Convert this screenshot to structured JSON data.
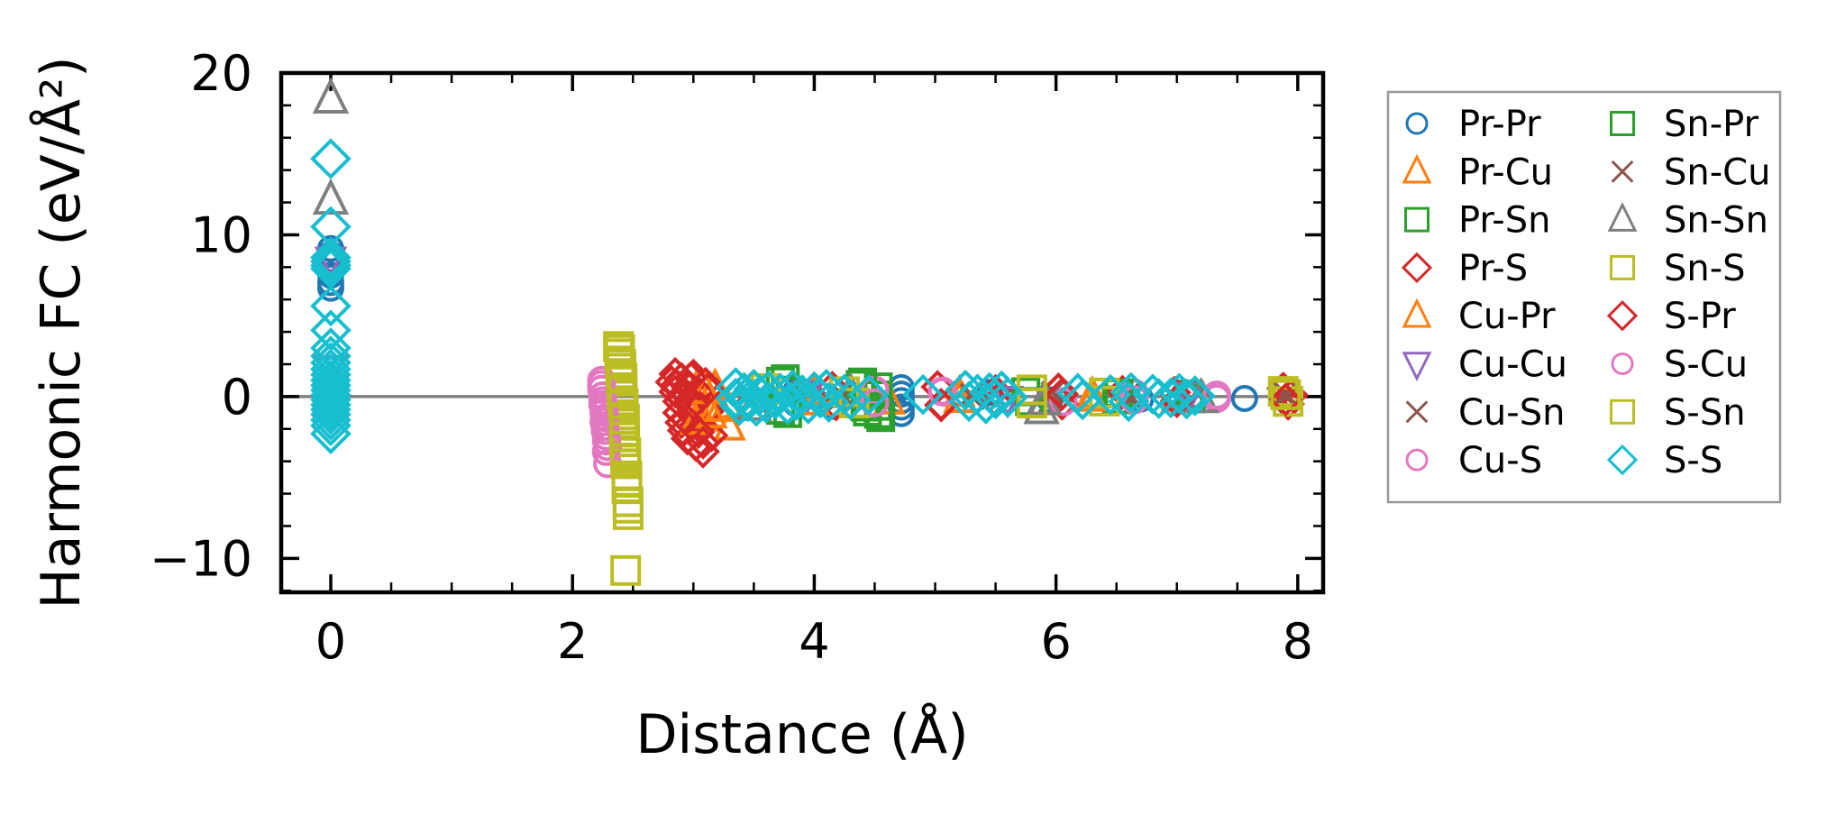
{
  "figure": {
    "background": "#ffffff",
    "axis_color": "#000000",
    "zero_line_color": "#808080",
    "legend_border_color": "#999999"
  },
  "chart_data": {
    "type": "scatter",
    "title": "",
    "xlabel": "Distance (Å)",
    "ylabel": "Harmonic FC (eV/Å²)",
    "xlim": [
      -0.41,
      8.21
    ],
    "ylim": [
      -12.1,
      20.0
    ],
    "xticks": [
      0,
      2,
      4,
      6,
      8
    ],
    "yticks": [
      20,
      10,
      0,
      -10
    ],
    "x_minor_step": 0.5,
    "y_minor_step": 2,
    "grid": false,
    "zero_line_y": 0,
    "legend_position": "outside-right",
    "legend_columns": 2,
    "series": [
      {
        "name": "Pr-Pr",
        "marker": "circle",
        "color": "#1f77b4",
        "size": 26,
        "points": [
          [
            0,
            9.15
          ],
          [
            0,
            8.8
          ],
          [
            0,
            8.45
          ],
          [
            0,
            7.5
          ],
          [
            0,
            7.05
          ],
          [
            0,
            6.7
          ],
          [
            3.85,
            0.35
          ],
          [
            3.85,
            -0.45
          ],
          [
            4.15,
            -0.6
          ],
          [
            4.72,
            0.55
          ],
          [
            4.72,
            0.15
          ],
          [
            4.72,
            -0.25
          ],
          [
            4.72,
            -0.65
          ],
          [
            4.72,
            -1.05
          ],
          [
            5.45,
            0.25
          ],
          [
            5.95,
            -0.2
          ],
          [
            6.7,
            -0.15
          ],
          [
            7.56,
            -0.12
          ]
        ]
      },
      {
        "name": "Pr-Cu",
        "marker": "triangle-up",
        "color": "#ff7f0e",
        "size": 30,
        "points": [
          [
            3.02,
            0.45
          ],
          [
            3.05,
            -0.95
          ],
          [
            3.08,
            -1.35
          ],
          [
            3.18,
            0.6
          ],
          [
            3.28,
            -0.55
          ],
          [
            3.3,
            -1.9
          ],
          [
            4.0,
            0.3
          ],
          [
            4.62,
            -0.3
          ],
          [
            5.2,
            -0.2
          ],
          [
            6.3,
            0.12
          ],
          [
            7.0,
            -0.1
          ]
        ]
      },
      {
        "name": "Pr-Sn",
        "marker": "square",
        "color": "#2ca02c",
        "size": 28,
        "points": [
          [
            3.72,
            0.95
          ],
          [
            3.72,
            -0.85
          ],
          [
            4.38,
            0.75
          ],
          [
            4.42,
            -0.65
          ],
          [
            4.53,
            0.6
          ],
          [
            4.53,
            0.1
          ],
          [
            4.53,
            -0.6
          ],
          [
            4.53,
            -1.1
          ],
          [
            5.75,
            0.3
          ],
          [
            6.5,
            -0.2
          ],
          [
            7.1,
            0.15
          ]
        ]
      },
      {
        "name": "Pr-S",
        "marker": "diamond",
        "color": "#d62728",
        "size": 32,
        "points": [
          [
            2.82,
            0.9
          ],
          [
            2.85,
            1.4
          ],
          [
            2.85,
            0.3
          ],
          [
            2.88,
            -0.3
          ],
          [
            2.88,
            -1.0
          ],
          [
            2.9,
            1.1
          ],
          [
            2.9,
            -1.6
          ],
          [
            2.92,
            -2.1
          ],
          [
            2.95,
            0.6
          ],
          [
            2.95,
            -2.6
          ],
          [
            2.98,
            -0.6
          ],
          [
            3.0,
            1.3
          ],
          [
            3.0,
            -1.2
          ],
          [
            3.02,
            -3.0
          ],
          [
            3.05,
            0.2
          ],
          [
            3.05,
            -1.9
          ],
          [
            3.08,
            -3.4
          ],
          [
            3.1,
            0.8
          ],
          [
            3.12,
            -0.9
          ],
          [
            3.15,
            -2.4
          ],
          [
            4.15,
            0.55
          ],
          [
            4.18,
            -0.5
          ],
          [
            5.02,
            0.6
          ],
          [
            5.05,
            -0.55
          ],
          [
            5.5,
            0.35
          ],
          [
            6.02,
            0.45
          ],
          [
            6.05,
            -0.45
          ],
          [
            6.55,
            0.3
          ],
          [
            6.98,
            0.25
          ],
          [
            7.0,
            -0.25
          ],
          [
            7.88,
            0.5
          ],
          [
            7.92,
            -0.45
          ],
          [
            7.95,
            0.1
          ]
        ]
      },
      {
        "name": "Cu-Pr",
        "marker": "triangle-up",
        "color": "#ff7f0e",
        "size": 30,
        "points": [
          [
            3.02,
            -1.55
          ],
          [
            3.1,
            0.35
          ],
          [
            3.15,
            -1.15
          ],
          [
            3.22,
            -0.75
          ],
          [
            4.0,
            -0.35
          ],
          [
            5.2,
            0.18
          ],
          [
            6.3,
            -0.12
          ]
        ]
      },
      {
        "name": "Cu-Cu",
        "marker": "triangle-down",
        "color": "#9467bd",
        "size": 30,
        "points": [
          [
            0,
            8.45
          ],
          [
            0,
            1.75
          ],
          [
            0,
            0.4
          ],
          [
            0,
            -0.45
          ],
          [
            3.95,
            0.2
          ],
          [
            5.6,
            -0.15
          ],
          [
            7.1,
            0.08
          ]
        ]
      },
      {
        "name": "Cu-Sn",
        "marker": "x",
        "color": "#8c564b",
        "size": 28,
        "points": [
          [
            3.45,
            0.3
          ],
          [
            4.2,
            -0.2
          ],
          [
            5.3,
            0.12
          ],
          [
            5.95,
            -0.3
          ],
          [
            6.6,
            0.15
          ],
          [
            7.9,
            0.02
          ]
        ]
      },
      {
        "name": "Cu-S",
        "marker": "circle",
        "color": "#e377c2",
        "size": 28,
        "points": [
          [
            2.24,
            1.0
          ],
          [
            2.24,
            0.45
          ],
          [
            2.25,
            0.05
          ],
          [
            2.25,
            -0.5
          ],
          [
            2.26,
            -1.0
          ],
          [
            2.26,
            -1.55
          ],
          [
            2.27,
            -2.1
          ],
          [
            2.28,
            -2.75
          ],
          [
            2.28,
            -3.4
          ],
          [
            2.29,
            -4.15
          ],
          [
            4.5,
            0.4
          ],
          [
            5.06,
            0.35
          ],
          [
            6.06,
            -0.32
          ],
          [
            6.65,
            0.2
          ],
          [
            7.33,
            -0.12
          ]
        ]
      },
      {
        "name": "Sn-Pr",
        "marker": "square",
        "color": "#2ca02c",
        "size": 28,
        "points": [
          [
            3.76,
            1.1
          ],
          [
            3.78,
            -1.05
          ],
          [
            3.8,
            0.4
          ],
          [
            4.4,
            0.9
          ],
          [
            4.44,
            -0.95
          ],
          [
            4.55,
            -1.3
          ],
          [
            5.78,
            -0.3
          ],
          [
            6.52,
            0.22
          ],
          [
            7.12,
            -0.14
          ]
        ]
      },
      {
        "name": "Sn-Cu",
        "marker": "x",
        "color": "#8c564b",
        "size": 28,
        "points": [
          [
            3.47,
            -0.25
          ],
          [
            4.22,
            0.18
          ],
          [
            5.32,
            -0.1
          ],
          [
            5.97,
            0.25
          ],
          [
            6.62,
            -0.12
          ],
          [
            7.9,
            0.15
          ]
        ]
      },
      {
        "name": "Sn-Sn",
        "marker": "triangle-up",
        "color": "#7f7f7f",
        "size": 34,
        "points": [
          [
            0,
            18.4
          ],
          [
            0,
            12.15
          ],
          [
            3.5,
            -0.6
          ],
          [
            4.3,
            0.2
          ],
          [
            5.88,
            -0.8
          ],
          [
            5.9,
            -0.25
          ],
          [
            7.2,
            -0.12
          ]
        ]
      },
      {
        "name": "Sn-S",
        "marker": "square",
        "color": "#bcbd22",
        "size": 30,
        "points": [
          [
            2.38,
            3.1
          ],
          [
            2.39,
            2.65
          ],
          [
            2.39,
            2.2
          ],
          [
            2.4,
            1.75
          ],
          [
            2.4,
            1.35
          ],
          [
            2.4,
            0.95
          ],
          [
            2.41,
            0.55
          ],
          [
            2.41,
            0.15
          ],
          [
            2.41,
            -0.25
          ],
          [
            2.42,
            -0.7
          ],
          [
            2.42,
            -1.15
          ],
          [
            2.42,
            -1.65
          ],
          [
            2.43,
            -2.2
          ],
          [
            2.43,
            -2.8
          ],
          [
            2.44,
            -3.45
          ],
          [
            2.44,
            -4.15
          ],
          [
            2.45,
            -4.9
          ],
          [
            2.45,
            -5.7
          ],
          [
            2.46,
            -6.5
          ],
          [
            2.46,
            -7.3
          ],
          [
            2.44,
            -10.75
          ],
          [
            3.6,
            0.5
          ],
          [
            4.25,
            0.3
          ],
          [
            4.33,
            -0.4
          ],
          [
            5.8,
            0.42
          ],
          [
            6.4,
            -0.28
          ],
          [
            7.88,
            0.32
          ],
          [
            7.92,
            -0.3
          ]
        ]
      },
      {
        "name": "S-Pr",
        "marker": "diamond",
        "color": "#d62728",
        "size": 32,
        "points": [
          [
            2.86,
            0.7
          ],
          [
            2.9,
            0.0
          ],
          [
            2.94,
            -1.4
          ],
          [
            2.98,
            1.15
          ],
          [
            3.0,
            -0.45
          ],
          [
            3.04,
            -2.2
          ],
          [
            3.08,
            -2.85
          ],
          [
            3.12,
            0.45
          ],
          [
            5.05,
            -0.5
          ],
          [
            5.5,
            -0.3
          ],
          [
            6.05,
            0.15
          ],
          [
            7.0,
            -0.3
          ],
          [
            7.9,
            -0.18
          ]
        ]
      },
      {
        "name": "S-Cu",
        "marker": "circle",
        "color": "#e377c2",
        "size": 28,
        "points": [
          [
            2.24,
            0.75
          ],
          [
            2.25,
            -0.25
          ],
          [
            2.26,
            -0.75
          ],
          [
            2.27,
            -1.3
          ],
          [
            2.27,
            -1.85
          ],
          [
            2.28,
            -2.45
          ],
          [
            2.29,
            -3.1
          ],
          [
            4.5,
            -0.38
          ],
          [
            5.06,
            0.28
          ],
          [
            6.65,
            -0.2
          ],
          [
            7.33,
            0.1
          ]
        ]
      },
      {
        "name": "S-Sn",
        "marker": "square",
        "color": "#bcbd22",
        "size": 30,
        "points": [
          [
            2.39,
            2.9
          ],
          [
            2.4,
            2.0
          ],
          [
            2.41,
            1.15
          ],
          [
            2.41,
            0.35
          ],
          [
            2.42,
            -0.45
          ],
          [
            2.43,
            -1.4
          ],
          [
            2.43,
            -2.5
          ],
          [
            2.44,
            -3.8
          ],
          [
            2.45,
            -5.3
          ],
          [
            2.46,
            -6.9
          ],
          [
            5.8,
            -0.4
          ],
          [
            6.4,
            0.22
          ],
          [
            7.9,
            0.12
          ]
        ]
      },
      {
        "name": "S-S",
        "marker": "diamond",
        "color": "#17becf",
        "size": 40,
        "points": [
          [
            0,
            14.7
          ],
          [
            0,
            10.5
          ],
          [
            0,
            8.6
          ],
          [
            0,
            8.35
          ],
          [
            0,
            8.1
          ],
          [
            0,
            7.9
          ],
          [
            0,
            5.6
          ],
          [
            0,
            4.1
          ],
          [
            0,
            3.0
          ],
          [
            0,
            2.5
          ],
          [
            0,
            2.1
          ],
          [
            0,
            1.7
          ],
          [
            0,
            1.35
          ],
          [
            0,
            1.0
          ],
          [
            0,
            0.7
          ],
          [
            0,
            0.4
          ],
          [
            0,
            0.1
          ],
          [
            0,
            -0.2
          ],
          [
            0,
            -0.5
          ],
          [
            0,
            -0.8
          ],
          [
            0,
            -1.1
          ],
          [
            0,
            -1.45
          ],
          [
            0,
            -1.8
          ],
          [
            0,
            -2.3
          ],
          [
            3.35,
            0.55
          ],
          [
            3.35,
            -0.1
          ],
          [
            3.38,
            -0.55
          ],
          [
            3.42,
            0.25
          ],
          [
            3.45,
            -0.3
          ],
          [
            3.5,
            0.45
          ],
          [
            3.52,
            -0.6
          ],
          [
            3.55,
            0.1
          ],
          [
            3.6,
            -0.4
          ],
          [
            3.62,
            0.35
          ],
          [
            3.68,
            -0.15
          ],
          [
            3.72,
            0.2
          ],
          [
            3.78,
            -0.5
          ],
          [
            3.82,
            0.4
          ],
          [
            3.85,
            -0.25
          ],
          [
            3.9,
            0.1
          ],
          [
            3.95,
            -0.45
          ],
          [
            4.0,
            0.3
          ],
          [
            4.05,
            -0.1
          ],
          [
            4.1,
            0.45
          ],
          [
            4.12,
            -0.35
          ],
          [
            4.25,
            0.15
          ],
          [
            4.3,
            -0.2
          ],
          [
            4.45,
            0.1
          ],
          [
            4.9,
            0.12
          ],
          [
            5.25,
            0.4
          ],
          [
            5.28,
            -0.3
          ],
          [
            5.35,
            0.15
          ],
          [
            5.42,
            -0.45
          ],
          [
            5.45,
            0.25
          ],
          [
            5.5,
            -0.15
          ],
          [
            5.55,
            0.35
          ],
          [
            5.6,
            -0.05
          ],
          [
            6.18,
            0.2
          ],
          [
            6.22,
            -0.2
          ],
          [
            6.45,
            0.12
          ],
          [
            6.6,
            -0.3
          ],
          [
            6.62,
            0.25
          ],
          [
            6.8,
            0.15
          ],
          [
            6.85,
            -0.12
          ],
          [
            6.95,
            -0.08
          ],
          [
            7.02,
            0.2
          ],
          [
            7.08,
            -0.15
          ],
          [
            7.15,
            0.05
          ]
        ]
      }
    ]
  }
}
